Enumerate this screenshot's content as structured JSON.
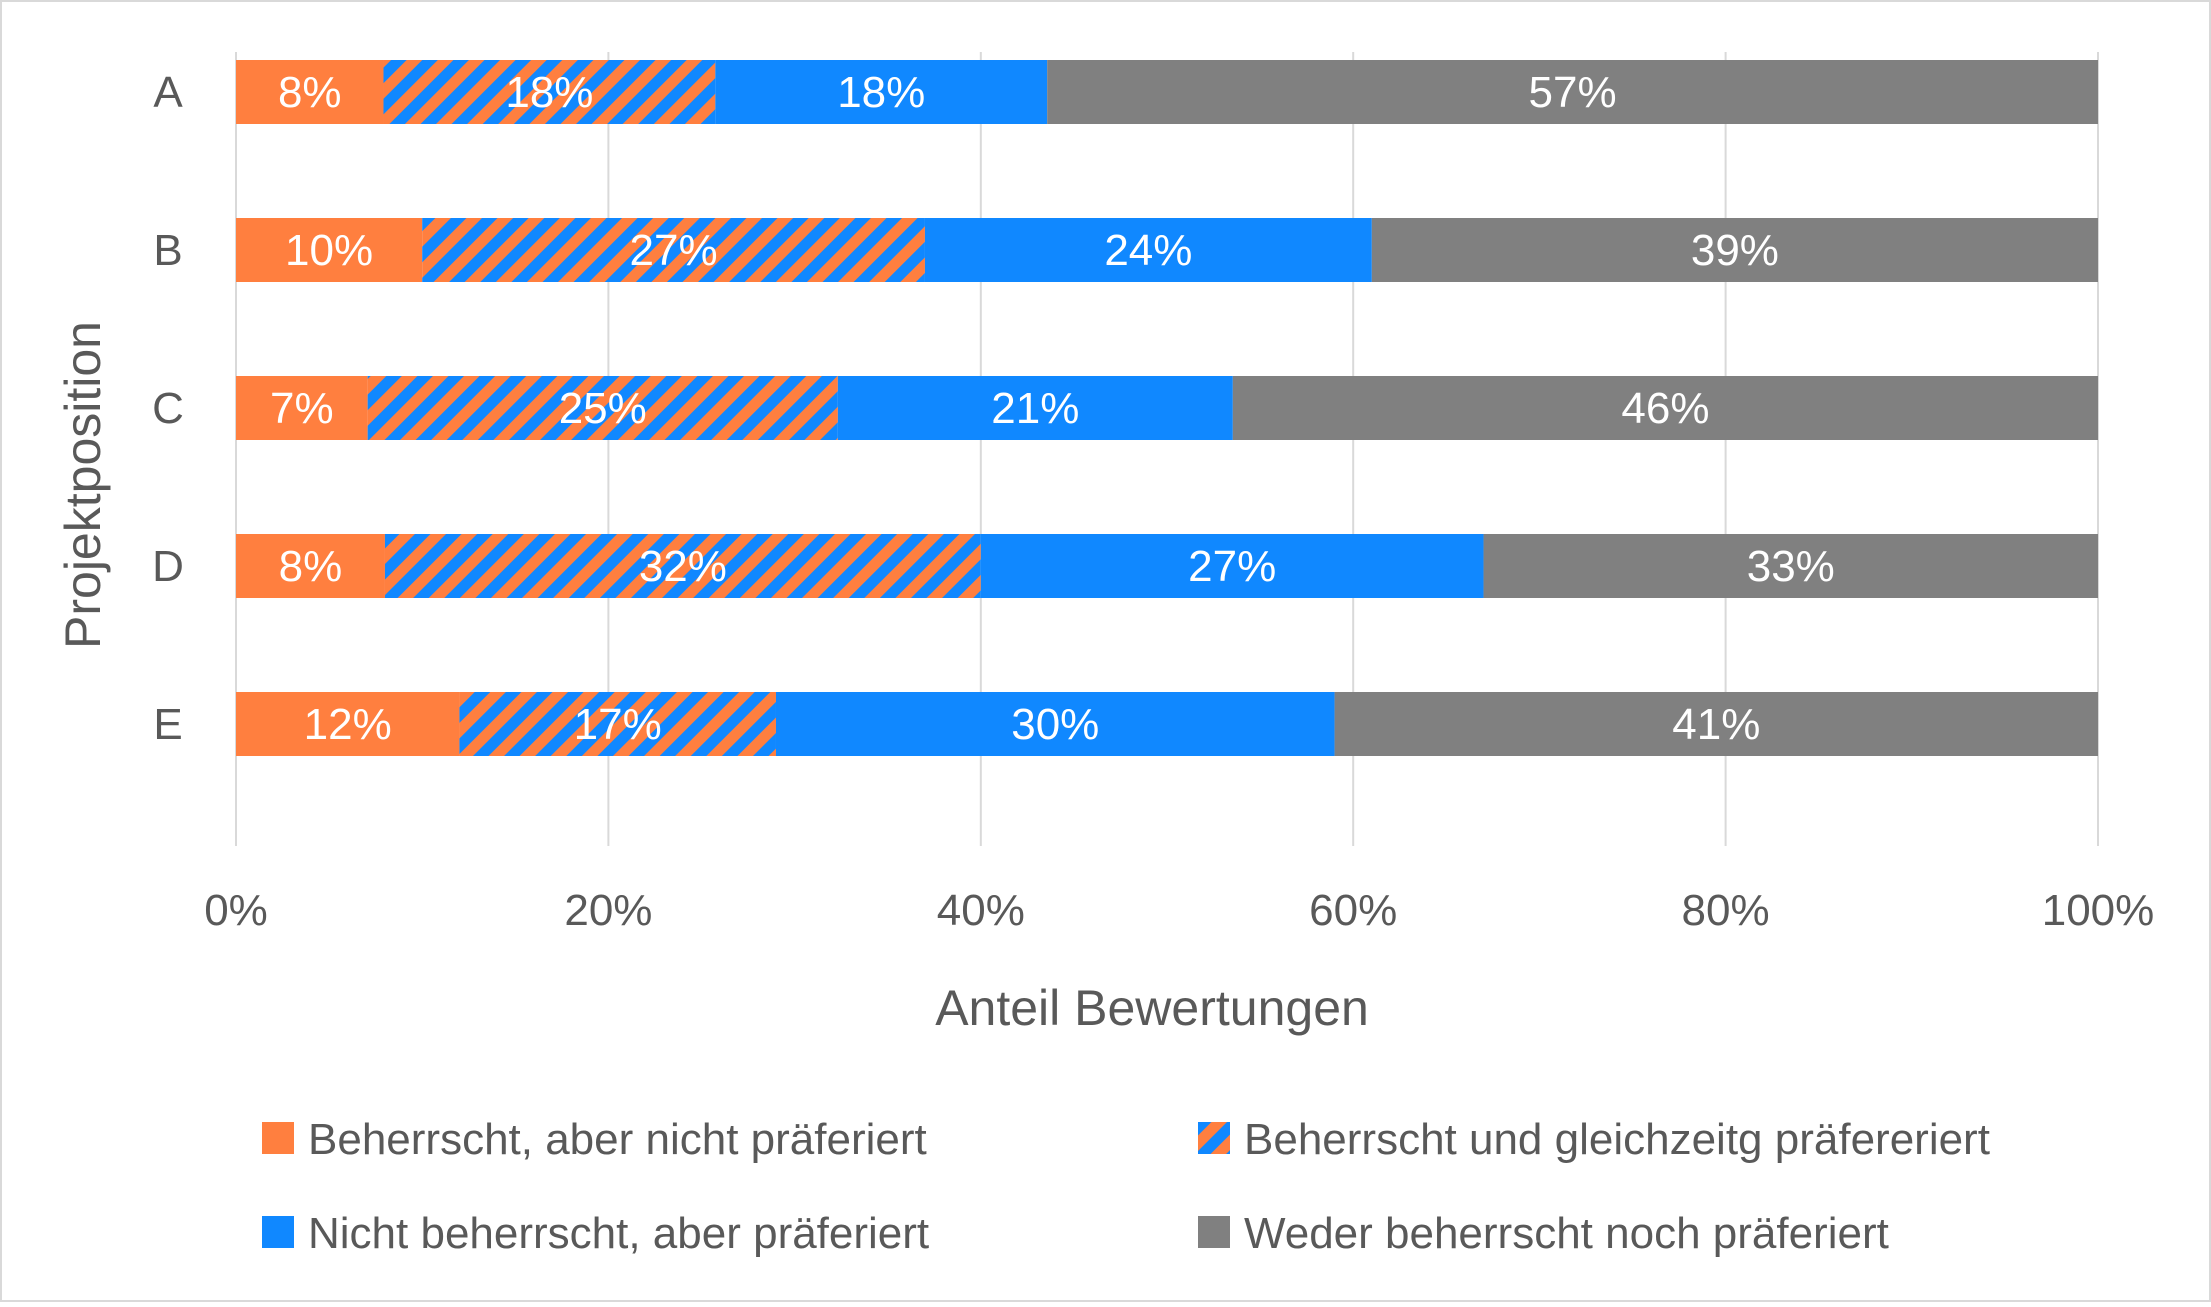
{
  "chart_data": {
    "type": "bar",
    "orientation": "horizontal",
    "stacked": "percent",
    "title": "",
    "xlabel": "Anteil Bewertungen",
    "ylabel": "Projektposition",
    "xlim": [
      0,
      100
    ],
    "xticks": [
      "0%",
      "20%",
      "40%",
      "60%",
      "80%",
      "100%"
    ],
    "categories": [
      "A",
      "B",
      "C",
      "D",
      "E"
    ],
    "grid": "vertical",
    "legend_position": "bottom",
    "series": [
      {
        "name": "Beherrscht, aber nicht präferiert",
        "color": "#FF7F3F",
        "pattern": "solid",
        "values": [
          8,
          10,
          7,
          8,
          12
        ],
        "labels": [
          "8%",
          "10%",
          "7%",
          "8%",
          "12%"
        ]
      },
      {
        "name": "Beherrscht und gleichzeitg präfereriert",
        "color": "#FF7F3F",
        "color2": "#1088FF",
        "pattern": "diagonal-stripes",
        "values": [
          18,
          27,
          25,
          32,
          17
        ],
        "labels": [
          "18%",
          "27%",
          "25%",
          "32%",
          "17%"
        ]
      },
      {
        "name": "Nicht beherrscht, aber präferiert",
        "color": "#1088FF",
        "pattern": "solid",
        "values": [
          18,
          24,
          21,
          27,
          30
        ],
        "labels": [
          "18%",
          "24%",
          "21%",
          "27%",
          "30%"
        ]
      },
      {
        "name": "Weder beherrscht noch präferiert",
        "color": "#808080",
        "pattern": "solid",
        "values": [
          57,
          39,
          46,
          33,
          41
        ],
        "labels": [
          "57%",
          "39%",
          "46%",
          "33%",
          "41%"
        ]
      }
    ]
  }
}
